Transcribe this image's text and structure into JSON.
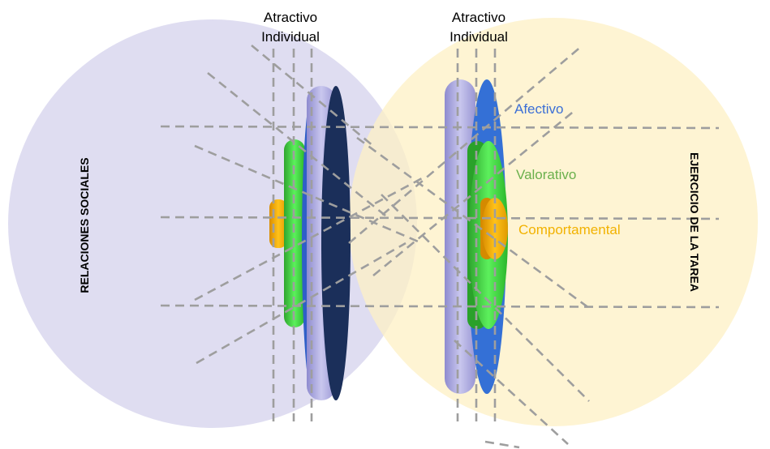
{
  "left_group": {
    "top_label_line1": "Atractivo",
    "top_label_line2": "Individual",
    "circle_label": "RELACIONES SOCIALES"
  },
  "right_group": {
    "top_label_line1": "Atractivo",
    "top_label_line2": "Individual",
    "circle_label": "EJERCICIO DE LA TAREA",
    "layers": [
      {
        "label": "Afectivo",
        "color": "#3b6fd6"
      },
      {
        "label": "Valorativo",
        "color": "#6ab04c"
      },
      {
        "label": "Comportamental",
        "color": "#f2b200"
      }
    ]
  },
  "colors": {
    "left_circle": "#dcd9f0",
    "right_circle": "#fdf3d2",
    "outer_disk_face": "#2f5fc8",
    "outer_disk_rim": "#a9a6d9",
    "outer_disk_dark": "#1b2f5a",
    "middle_disk": "#3dd33d",
    "inner_disk": "#f2a900",
    "dashes": "#9e9e9e"
  }
}
